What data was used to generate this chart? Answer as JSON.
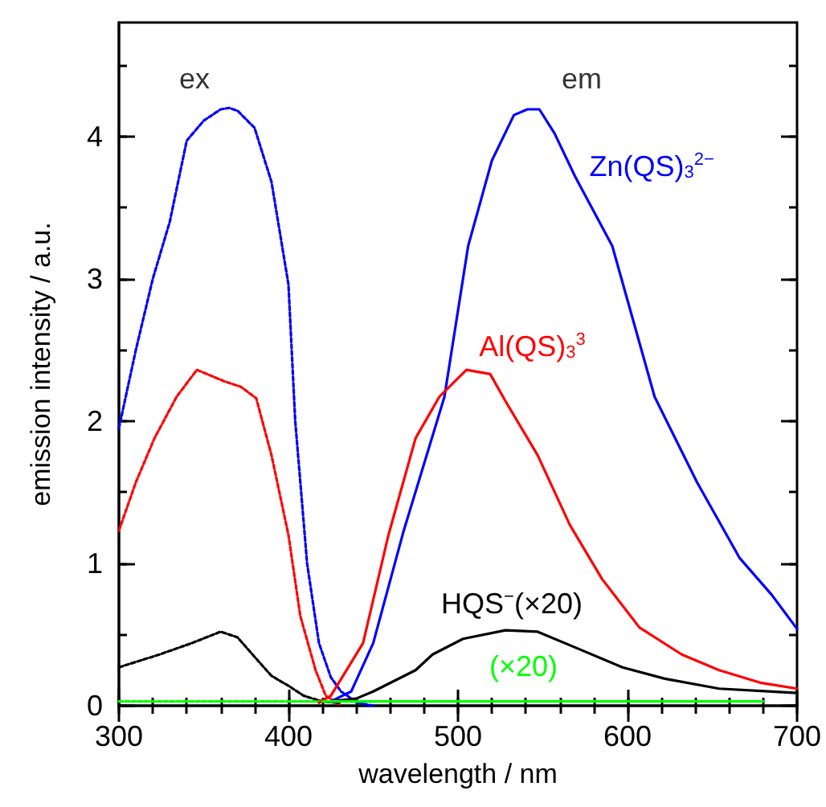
{
  "chart_data": {
    "type": "line",
    "xlabel": "wavelength / nm",
    "ylabel": "emission intensity / a.u.",
    "xlim": [
      300,
      700
    ],
    "ylim": [
      0,
      4.8
    ],
    "xticks": [
      300,
      {
        "value": 320,
        "label": null
      },
      {
        "value": 340,
        "label": null
      },
      {
        "value": 360,
        "label": null
      },
      {
        "value": 380,
        "label": null
      },
      400,
      {
        "value": 420,
        "label": null
      },
      {
        "value": 440,
        "label": null
      },
      {
        "value": 460,
        "label": null
      },
      {
        "value": 480,
        "label": null
      },
      500,
      {
        "value": 520,
        "label": null
      },
      {
        "value": 540,
        "label": null
      },
      {
        "value": 560,
        "label": null
      },
      {
        "value": 580,
        "label": null
      },
      600,
      {
        "value": 620,
        "label": null
      },
      {
        "value": 640,
        "label": null
      },
      {
        "value": 660,
        "label": null
      },
      {
        "value": 680,
        "label": null
      },
      700
    ],
    "yticks": [
      0,
      {
        "value": 0.5,
        "label": null
      },
      1,
      {
        "value": 1.5,
        "label": null
      },
      2,
      {
        "value": 2.5,
        "label": null
      },
      3,
      {
        "value": 3.5,
        "label": null
      },
      4,
      {
        "value": 4.5,
        "label": null
      }
    ],
    "grid": false,
    "annotations": [
      "ex",
      "em"
    ],
    "series": [
      {
        "color": "#0000ff",
        "line_style": "dotted",
        "x": [
          300,
          310,
          320,
          330,
          340,
          350,
          360,
          365,
          370,
          380,
          390,
          400,
          404,
          411,
          418,
          425,
          431,
          441,
          450
        ],
        "values": [
          1.95,
          2.5,
          3.0,
          3.4,
          3.97,
          4.11,
          4.19,
          4.2,
          4.18,
          4.06,
          3.68,
          2.96,
          2.0,
          1.0,
          0.44,
          0.2,
          0.1,
          0.02,
          0
        ]
      },
      {
        "color": "#ff0000",
        "line_style": "dotted",
        "x": [
          300,
          310,
          321,
          334,
          346,
          362,
          372,
          381,
          390,
          400,
          407,
          416,
          422,
          430
        ],
        "values": [
          1.23,
          1.57,
          1.88,
          2.17,
          2.36,
          2.28,
          2.24,
          2.16,
          1.76,
          1.2,
          0.63,
          0.25,
          0.07,
          0.01
        ]
      },
      {
        "color": "#000000",
        "line_style": "dotted",
        "x": [
          300,
          324,
          343,
          360,
          370,
          381,
          390,
          400,
          409,
          420,
          430
        ],
        "values": [
          0.27,
          0.36,
          0.44,
          0.52,
          0.48,
          0.33,
          0.21,
          0.14,
          0.07,
          0.03,
          0.02
        ]
      },
      {
        "color": "#00ff00",
        "line_style": "dotted",
        "x": [
          300,
          450
        ],
        "values": [
          0.03,
          0.03
        ]
      },
      {
        "name": "Zn(QS)$_{3}$$^{2−}$",
        "color": "#0000ff",
        "line_style": "solid",
        "x": [
          425,
          437,
          450,
          468,
          492,
          506,
          520,
          533,
          541,
          548,
          557,
          569,
          591,
          616,
          641,
          666,
          685,
          700
        ],
        "values": [
          0.03,
          0.1,
          0.44,
          1.23,
          2.17,
          3.23,
          3.83,
          4.15,
          4.19,
          4.19,
          4.02,
          3.72,
          3.23,
          2.17,
          1.57,
          1.04,
          0.78,
          0.54
        ]
      },
      {
        "name": "Al(QS)$_{3}$$^{3}$",
        "color": "#ff0000",
        "line_style": "solid",
        "x": [
          418,
          425,
          444,
          459,
          475,
          489,
          505,
          519,
          528,
          547,
          566,
          585,
          607,
          632,
          654,
          679,
          700
        ],
        "values": [
          0.02,
          0.07,
          0.44,
          1.2,
          1.88,
          2.17,
          2.36,
          2.33,
          2.14,
          1.76,
          1.27,
          0.89,
          0.55,
          0.36,
          0.25,
          0.16,
          0.12
        ]
      },
      {
        "name": "HQS$^{−}$(×20)",
        "color": "#000000",
        "line_style": "solid",
        "x": [
          425,
          440,
          450,
          475,
          485,
          503,
          528,
          547,
          569,
          597,
          622,
          654,
          685,
          700
        ],
        "values": [
          0.03,
          0.05,
          0.1,
          0.25,
          0.36,
          0.47,
          0.53,
          0.52,
          0.41,
          0.27,
          0.19,
          0.12,
          0.1,
          0.09
        ]
      },
      {
        "name": "(×20)",
        "color": "#00ff00",
        "line_style": "solid",
        "x": [
          420,
          550,
          680
        ],
        "values": [
          0.03,
          0.03,
          0.03
        ]
      }
    ]
  }
}
